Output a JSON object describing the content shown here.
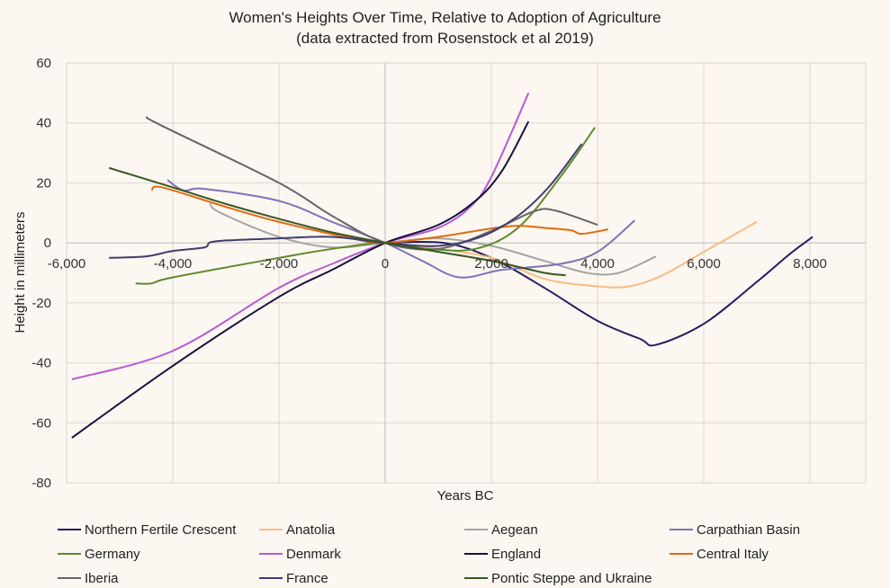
{
  "chart_data": {
    "type": "line",
    "title": "Women's Heights Over Time, Relative to Adoption of Agriculture",
    "subtitle": "(data extracted from Rosenstock et al 2019)",
    "xlabel": "Years BC",
    "ylabel": "Height in millimeters",
    "xlim": [
      -6000,
      9050
    ],
    "ylim": [
      -80,
      60
    ],
    "xticks": [
      -6000,
      -4000,
      -2000,
      0,
      2000,
      4000,
      6000,
      8000
    ],
    "xtick_labels": [
      "-6,000",
      "-4,000",
      "-2,000",
      "0",
      "2,000",
      "4,000",
      "6,000",
      "8,000"
    ],
    "yticks": [
      -80,
      -60,
      -40,
      -20,
      0,
      20,
      40,
      60
    ],
    "ytick_labels": [
      "-80",
      "-60",
      "-40",
      "-20",
      "0",
      "20",
      "40",
      "60"
    ],
    "grid": true,
    "legend_position": "bottom",
    "series": [
      {
        "name": "Northern Fertile Crescent",
        "color": "#221e62",
        "points": [
          [
            0,
            0
          ],
          [
            1100,
            0
          ],
          [
            2000,
            -5
          ],
          [
            3000,
            -15
          ],
          [
            4000,
            -26
          ],
          [
            4800,
            -32
          ],
          [
            5100,
            -34
          ],
          [
            6000,
            -27
          ],
          [
            7000,
            -13
          ],
          [
            7600,
            -4
          ],
          [
            8050,
            2
          ]
        ]
      },
      {
        "name": "Anatolia",
        "color": "#f9bb85",
        "points": [
          [
            0,
            0
          ],
          [
            1000,
            -2
          ],
          [
            2000,
            -5
          ],
          [
            3000,
            -12
          ],
          [
            4000,
            -14.5
          ],
          [
            4600,
            -14.5
          ],
          [
            5200,
            -11
          ],
          [
            6000,
            -3
          ],
          [
            7000,
            7
          ]
        ]
      },
      {
        "name": "Aegean",
        "color": "#a5a5a5",
        "points": [
          [
            -3300,
            13
          ],
          [
            -3100,
            10
          ],
          [
            -2000,
            2
          ],
          [
            -1000,
            -1.5
          ],
          [
            0,
            0
          ],
          [
            1000,
            1.5
          ],
          [
            2000,
            -1
          ],
          [
            3000,
            -6
          ],
          [
            3800,
            -10
          ],
          [
            4400,
            -10
          ],
          [
            5100,
            -4.5
          ]
        ]
      },
      {
        "name": "Carpathian Basin",
        "color": "#7b74b8",
        "points": [
          [
            -4100,
            21
          ],
          [
            -3800,
            17.5
          ],
          [
            -3400,
            18
          ],
          [
            -2000,
            14
          ],
          [
            -1000,
            7
          ],
          [
            0,
            0
          ],
          [
            700,
            -6
          ],
          [
            1400,
            -11.5
          ],
          [
            2200,
            -9
          ],
          [
            3300,
            -7
          ],
          [
            4000,
            -3
          ],
          [
            4700,
            7.5
          ]
        ]
      },
      {
        "name": "Germany",
        "color": "#5e8a2e",
        "points": [
          [
            -4700,
            -13.5
          ],
          [
            -4400,
            -13.5
          ],
          [
            -4000,
            -11.5
          ],
          [
            -2000,
            -5
          ],
          [
            -1000,
            -2
          ],
          [
            0,
            0
          ],
          [
            800,
            -2
          ],
          [
            1700,
            -2
          ],
          [
            2500,
            5
          ],
          [
            3300,
            22
          ],
          [
            3950,
            38.5
          ]
        ]
      },
      {
        "name": "Denmark",
        "color": "#b45ad6",
        "points": [
          [
            -5900,
            -45.5
          ],
          [
            -4000,
            -36
          ],
          [
            -2000,
            -15
          ],
          [
            -1000,
            -7
          ],
          [
            0,
            0
          ],
          [
            1000,
            5
          ],
          [
            1600,
            12
          ],
          [
            2000,
            22
          ],
          [
            2700,
            50
          ]
        ]
      },
      {
        "name": "England",
        "color": "#15133f",
        "points": [
          [
            -5900,
            -65
          ],
          [
            -4000,
            -41
          ],
          [
            -2000,
            -18
          ],
          [
            -1000,
            -9
          ],
          [
            0,
            0
          ],
          [
            1000,
            6
          ],
          [
            1700,
            14
          ],
          [
            2200,
            24
          ],
          [
            2700,
            40.5
          ]
        ]
      },
      {
        "name": "Central Italy",
        "color": "#e2690f",
        "points": [
          [
            -4400,
            17.5
          ],
          [
            -4200,
            18.5
          ],
          [
            -3000,
            12
          ],
          [
            -2000,
            7
          ],
          [
            -500,
            1
          ],
          [
            0,
            0
          ],
          [
            1000,
            2
          ],
          [
            2000,
            4.8
          ],
          [
            2500,
            5.7
          ],
          [
            3000,
            5
          ],
          [
            3500,
            4.2
          ],
          [
            3700,
            3
          ],
          [
            4200,
            4.5
          ]
        ]
      },
      {
        "name": "Iberia",
        "color": "#666666",
        "points": [
          [
            -4500,
            42
          ],
          [
            -4200,
            39
          ],
          [
            -2000,
            20
          ],
          [
            -1000,
            9
          ],
          [
            0,
            0
          ],
          [
            1000,
            -2
          ],
          [
            2000,
            4
          ],
          [
            2800,
            10.5
          ],
          [
            3200,
            10.8
          ],
          [
            4000,
            6
          ]
        ]
      },
      {
        "name": "France",
        "color": "#413d6e",
        "points": [
          [
            -5200,
            -5
          ],
          [
            -4500,
            -4.5
          ],
          [
            -4000,
            -2.7
          ],
          [
            -3400,
            -1.5
          ],
          [
            -3200,
            0.5
          ],
          [
            -2000,
            1.5
          ],
          [
            -1000,
            2
          ],
          [
            0,
            0
          ],
          [
            1000,
            -1
          ],
          [
            1800,
            2
          ],
          [
            2500,
            9
          ],
          [
            3100,
            19
          ],
          [
            3700,
            33
          ]
        ]
      },
      {
        "name": "Pontic Steppe and Ukraine",
        "color": "#375623",
        "points": [
          [
            -5200,
            25
          ],
          [
            -4000,
            18.5
          ],
          [
            -3000,
            13
          ],
          [
            -2000,
            8
          ],
          [
            -1000,
            3.5
          ],
          [
            0,
            0
          ],
          [
            1000,
            -3
          ],
          [
            2000,
            -6
          ],
          [
            3000,
            -10
          ],
          [
            3400,
            -10.8
          ]
        ]
      }
    ]
  }
}
